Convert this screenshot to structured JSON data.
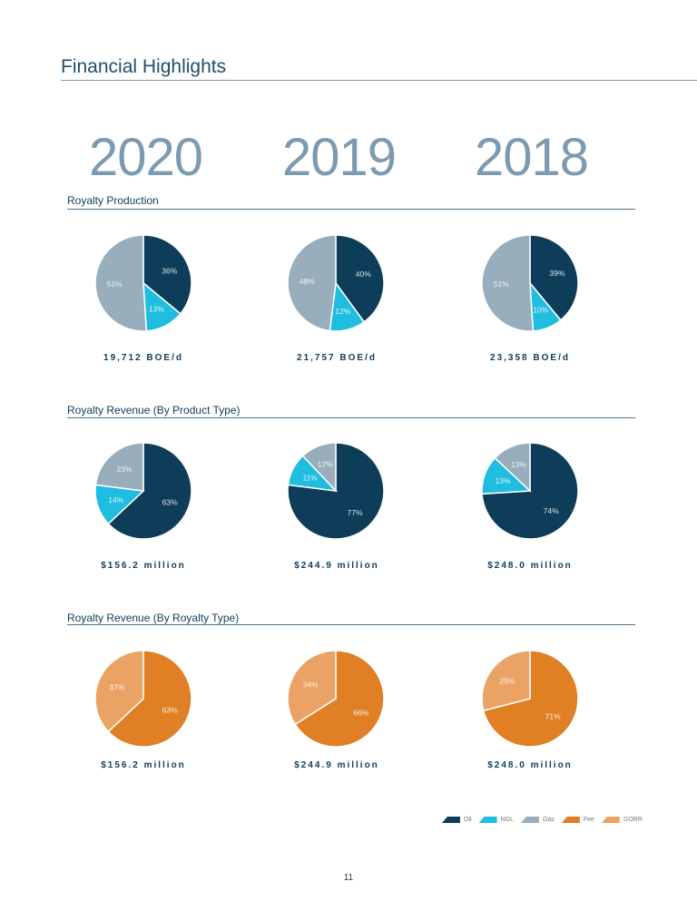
{
  "title": "Financial Highlights",
  "years": [
    "2020",
    "2019",
    "2018"
  ],
  "colors": {
    "Oil": "#0e3d5a",
    "NGL": "#1fbde0",
    "Gas": "#98aebd",
    "Fee": "#e07f24",
    "GORR": "#eba365"
  },
  "sections": [
    {
      "title": "Royalty Production",
      "captions": [
        "19,712 BOE/d",
        "21,757 BOE/d",
        "23,358 BOE/d"
      ]
    },
    {
      "title": "Royalty Revenue (By Product Type)",
      "captions": [
        "$156.2 million",
        "$244.9 million",
        "$248.0 million"
      ]
    },
    {
      "title": "Royalty Revenue (By Royalty Type)",
      "captions": [
        "$156.2 million",
        "$244.9 million",
        "$248.0 million"
      ]
    }
  ],
  "legend": [
    "Oil",
    "NGL",
    "Gas",
    "Fee",
    "GORR"
  ],
  "page_number": "11",
  "chart_data": [
    {
      "type": "pie",
      "title": "Royalty Production",
      "year": "2020",
      "categories": [
        "Oil",
        "NGL",
        "Gas"
      ],
      "values": [
        36,
        13,
        51
      ],
      "labels": [
        "36%",
        "13%",
        "51%"
      ]
    },
    {
      "type": "pie",
      "title": "Royalty Production",
      "year": "2019",
      "categories": [
        "Oil",
        "NGL",
        "Gas"
      ],
      "values": [
        40,
        12,
        48
      ],
      "labels": [
        "40%",
        "12%",
        "48%"
      ]
    },
    {
      "type": "pie",
      "title": "Royalty Production",
      "year": "2018",
      "categories": [
        "Oil",
        "NGL",
        "Gas"
      ],
      "values": [
        39,
        10,
        51
      ],
      "labels": [
        "39%",
        "10%",
        "51%"
      ]
    },
    {
      "type": "pie",
      "title": "Royalty Revenue (By Product Type)",
      "year": "2020",
      "categories": [
        "Oil",
        "NGL",
        "Gas"
      ],
      "values": [
        63,
        14,
        23
      ],
      "labels": [
        "63%",
        "14%",
        "23%"
      ]
    },
    {
      "type": "pie",
      "title": "Royalty Revenue (By Product Type)",
      "year": "2019",
      "categories": [
        "Oil",
        "NGL",
        "Gas"
      ],
      "values": [
        77,
        11,
        12
      ],
      "labels": [
        "77%",
        "11%",
        "12%"
      ]
    },
    {
      "type": "pie",
      "title": "Royalty Revenue (By Product Type)",
      "year": "2018",
      "categories": [
        "Oil",
        "NGL",
        "Gas"
      ],
      "values": [
        74,
        13,
        13
      ],
      "labels": [
        "74%",
        "13%",
        "13%"
      ]
    },
    {
      "type": "pie",
      "title": "Royalty Revenue (By Royalty Type)",
      "year": "2020",
      "categories": [
        "Fee",
        "GORR"
      ],
      "values": [
        63,
        37
      ],
      "labels": [
        "63%",
        "37%"
      ]
    },
    {
      "type": "pie",
      "title": "Royalty Revenue (By Royalty Type)",
      "year": "2019",
      "categories": [
        "Fee",
        "GORR"
      ],
      "values": [
        66,
        34
      ],
      "labels": [
        "66%",
        "34%"
      ]
    },
    {
      "type": "pie",
      "title": "Royalty Revenue (By Royalty Type)",
      "year": "2018",
      "categories": [
        "Fee",
        "GORR"
      ],
      "values": [
        71,
        29
      ],
      "labels": [
        "71%",
        "29%"
      ]
    }
  ]
}
